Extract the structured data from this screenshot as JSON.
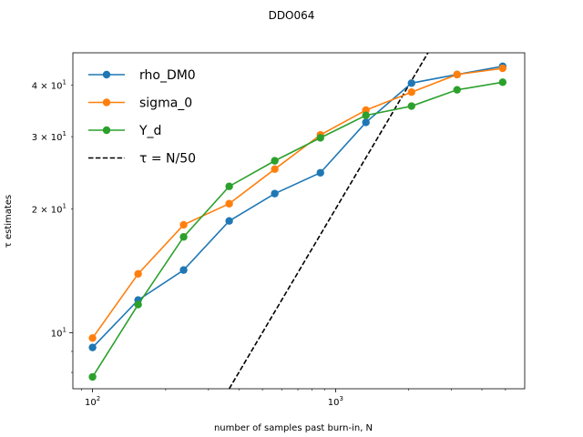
{
  "chart_data": {
    "type": "line",
    "title": "DDO064",
    "xlabel": "number of samples past burn-in, N",
    "ylabel": "τ estimates",
    "xscale": "log",
    "yscale": "log",
    "xlim": [
      83,
      6000
    ],
    "ylim": [
      7.3,
      48
    ],
    "x": [
      100,
      154,
      237,
      365,
      562,
      866,
      1333,
      2053,
      3162,
      4870
    ],
    "x_ticks": [
      {
        "value": 100,
        "base": "10",
        "exp": "2"
      },
      {
        "value": 1000,
        "base": "10",
        "exp": "3"
      }
    ],
    "y_ticks": [
      {
        "value": 10,
        "base": "10",
        "exp": "1",
        "mult": ""
      },
      {
        "value": 20,
        "base": "10",
        "exp": "1",
        "mult": "2 × "
      },
      {
        "value": 30,
        "base": "10",
        "exp": "1",
        "mult": "3 × "
      },
      {
        "value": 40,
        "base": "10",
        "exp": "1",
        "mult": "4 × "
      }
    ],
    "legend_position": "upper-left",
    "series": [
      {
        "name": "rho_DM0",
        "color": "#1f77b4",
        "values": [
          9.2,
          12.0,
          14.2,
          18.7,
          21.8,
          24.5,
          32.5,
          40.5,
          42.5,
          44.5
        ]
      },
      {
        "name": "sigma_0",
        "color": "#ff7f0e",
        "values": [
          9.7,
          13.9,
          18.3,
          20.6,
          25.0,
          30.3,
          34.8,
          38.5,
          42.5,
          44.0
        ]
      },
      {
        "name": "Y_d",
        "color": "#2ca02c",
        "values": [
          7.8,
          11.7,
          17.1,
          22.7,
          26.2,
          29.8,
          33.8,
          35.6,
          39.0,
          40.7
        ]
      }
    ],
    "reference_line": {
      "label": "τ = N/50",
      "divisor": 50,
      "style": "dashed",
      "color": "#000000"
    }
  }
}
